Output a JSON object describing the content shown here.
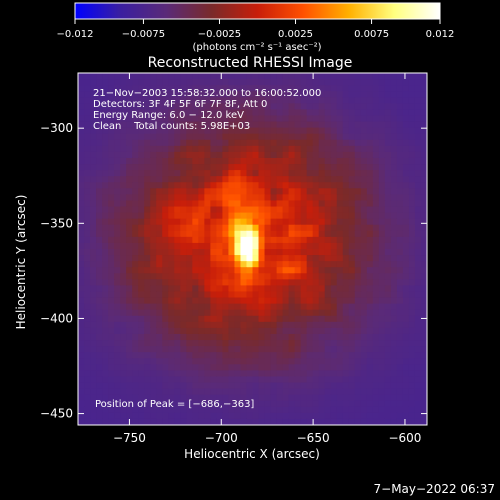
{
  "chart_data": {
    "type": "heatmap",
    "title": "Reconstructed RHESSI Image",
    "xlabel": "Heliocentric X (arcsec)",
    "ylabel": "Heliocentric Y (arcsec)",
    "xlim": [
      -778,
      -588
    ],
    "ylim": [
      -456,
      -271
    ],
    "x_ticks": [
      -750,
      -700,
      -650,
      -600
    ],
    "y_ticks": [
      -300,
      -350,
      -400,
      -450
    ],
    "x_tick_labels": [
      "−750",
      "−700",
      "−650",
      "−600"
    ],
    "y_tick_labels": [
      "−300",
      "−350",
      "−400",
      "−450"
    ],
    "colorbar": {
      "range": [
        -0.012,
        0.012
      ],
      "ticks": [
        -0.012,
        -0.0075,
        -0.0025,
        0.0025,
        0.0075,
        0.012
      ],
      "tick_labels": [
        "−0.012",
        "−0.0075",
        "−0.0025",
        "0.0025",
        "0.0075",
        "0.012"
      ],
      "unit_label": "(photons cm⁻² s⁻¹ asec⁻²)"
    },
    "annotations": [
      "21−Nov−2003 15:58:32.000 to 16:00:52.000",
      "Detectors: 3F 4F 5F 6F 7F 8F, Att 0",
      "Energy Range: 6.0 − 12.0 keV",
      "Clean    Total counts: 5.98E+03"
    ],
    "peak_label": "Position of Peak = [−686,−363]",
    "peak": {
      "x": -686,
      "y": -363,
      "value": 0.012
    },
    "color_map": [
      "#0000ff",
      "#3a1fa0",
      "#5a2a78",
      "#7a2a2a",
      "#c81e0a",
      "#ff5000",
      "#ffb000",
      "#ffff80",
      "#ffffff"
    ]
  },
  "footer": {
    "timestamp": "7−May−2022 06:37"
  }
}
